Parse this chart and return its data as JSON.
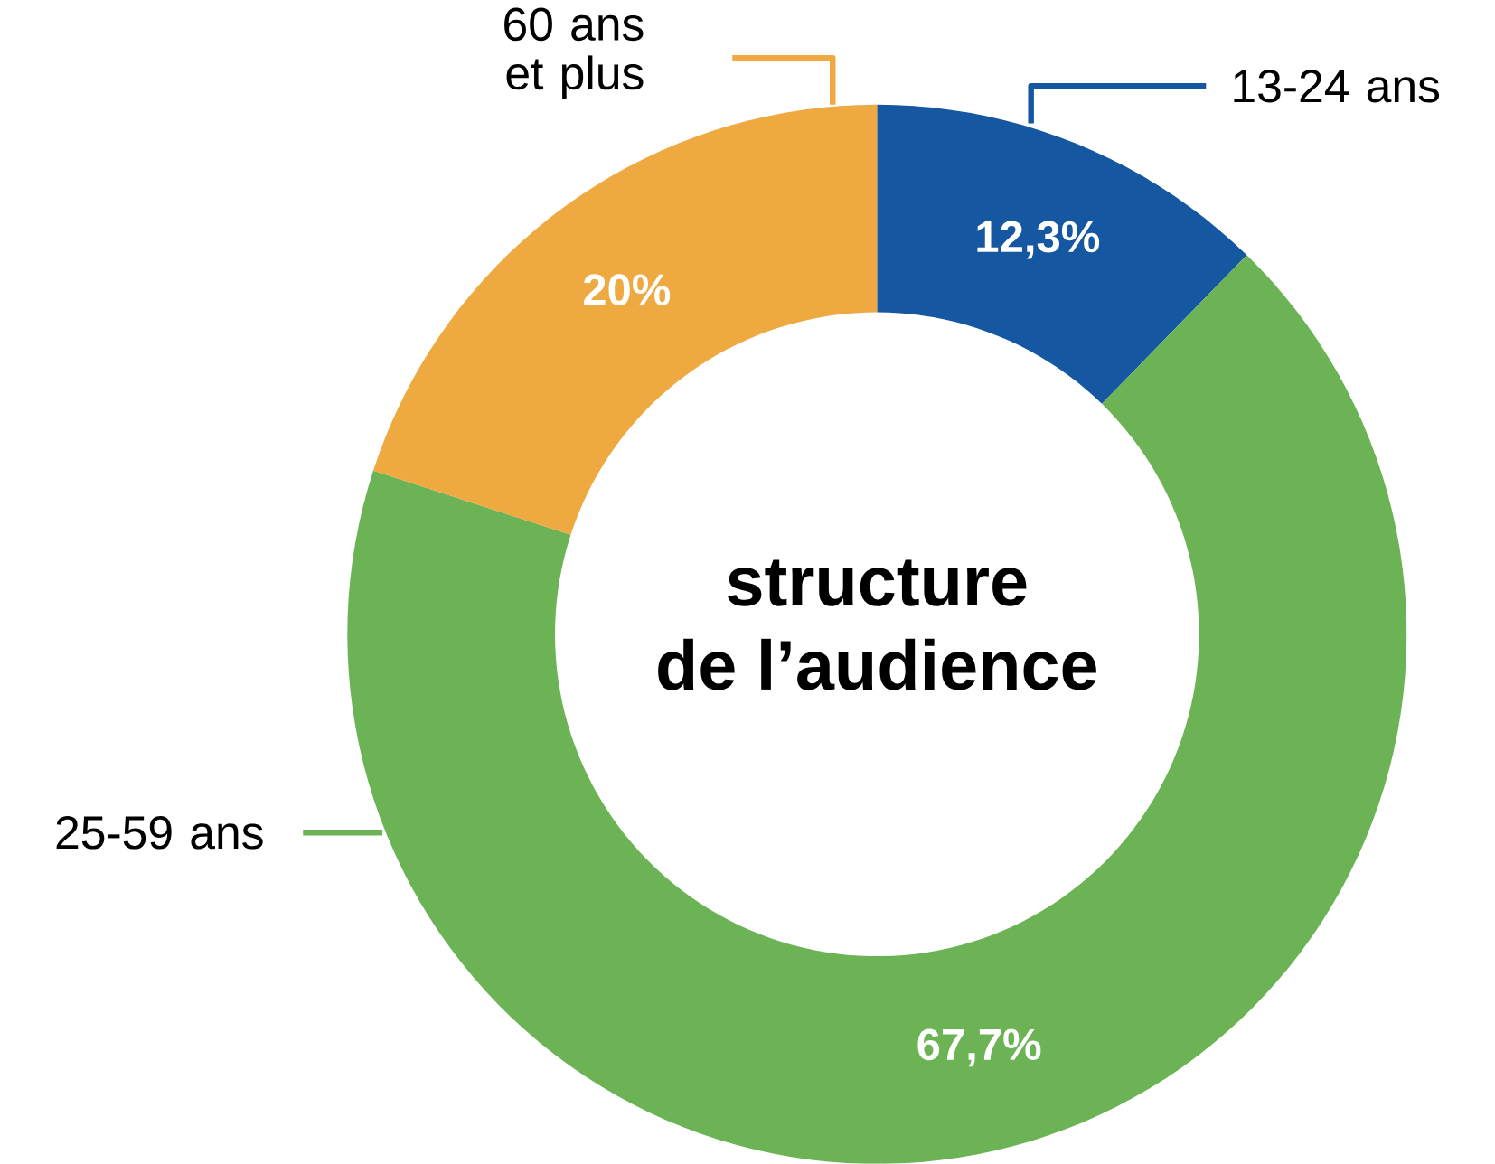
{
  "chart_data": {
    "type": "donut",
    "title": "structure de l’audience",
    "categories": [
      "13-24 ans",
      "25-59 ans",
      "60 ans et plus"
    ],
    "values": [
      12.3,
      67.7,
      20
    ],
    "colors": [
      "#1557a0",
      "#6cb356",
      "#eea941"
    ],
    "value_labels": [
      "12,3%",
      "67,7%",
      "20%"
    ]
  }
}
